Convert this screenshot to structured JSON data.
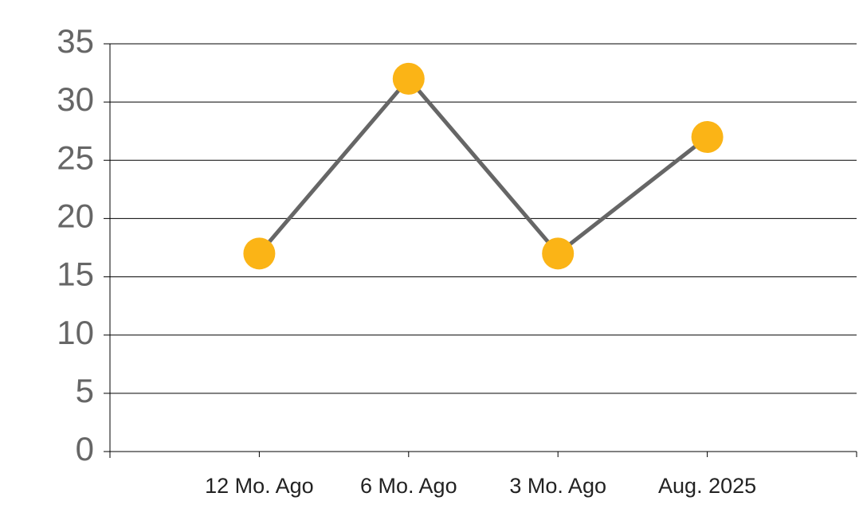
{
  "chart_data": {
    "type": "line",
    "categories": [
      "12 Mo. Ago",
      "6 Mo. Ago",
      "3 Mo. Ago",
      "Aug. 2025"
    ],
    "values": [
      17,
      32,
      17,
      27
    ],
    "color": "#666666",
    "marker_color": "#fbb416",
    "ylim": [
      0,
      35
    ],
    "yticks": [
      0,
      5,
      10,
      15,
      20,
      25,
      30,
      35
    ],
    "grid": true
  }
}
